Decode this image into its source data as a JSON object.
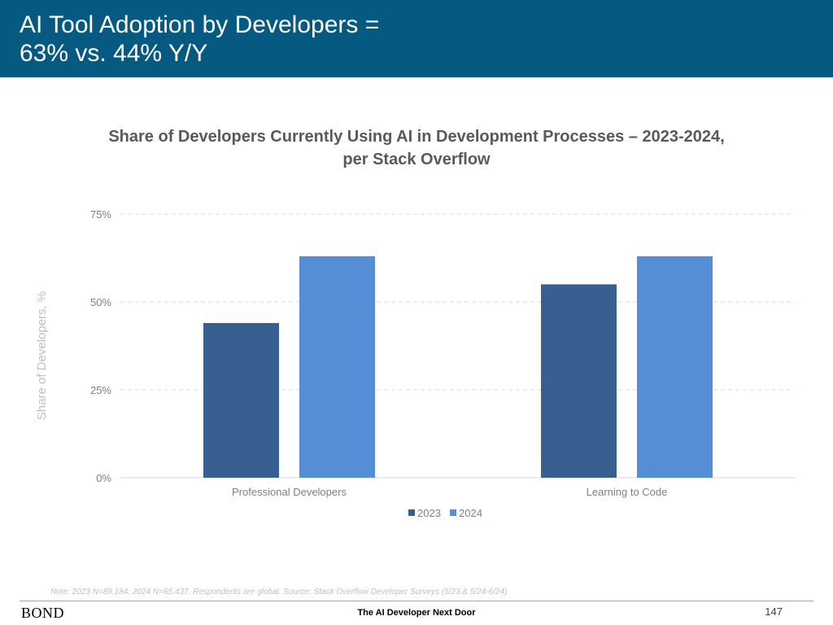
{
  "slide": {
    "title_lines": [
      "AI Tool Adoption by Developers =",
      "63% vs. 44% Y/Y"
    ],
    "header_color": "#065a81",
    "note": "Note: 2023 N=89,184; 2024 N=65,437. Respondents are global. Source: Stack Overflow Developer Surveys (5/23 & 5/24-6/24)",
    "footer": {
      "brand": "BOND",
      "center_text": "The AI Developer Next Door",
      "page_number": "147"
    }
  },
  "chart_data": {
    "type": "bar",
    "title_lines": [
      "Share of Developers Currently Using AI in Development Processes – 2023-2024,",
      "per Stack Overflow"
    ],
    "ylabel": "Share of Developers, %",
    "xlabel": "",
    "categories": [
      "Professional Developers",
      "Learning to Code"
    ],
    "series": [
      {
        "name": "2023",
        "values": [
          44,
          55
        ],
        "color": "#375f8f"
      },
      {
        "name": "2024",
        "values": [
          63,
          63
        ],
        "color": "#558ed5"
      }
    ],
    "ylim": [
      0,
      75
    ],
    "yticks": [
      0,
      25,
      50,
      75
    ],
    "ytick_labels": [
      "0%",
      "25%",
      "50%",
      "75%"
    ],
    "grid": true,
    "legend": "bottom"
  }
}
